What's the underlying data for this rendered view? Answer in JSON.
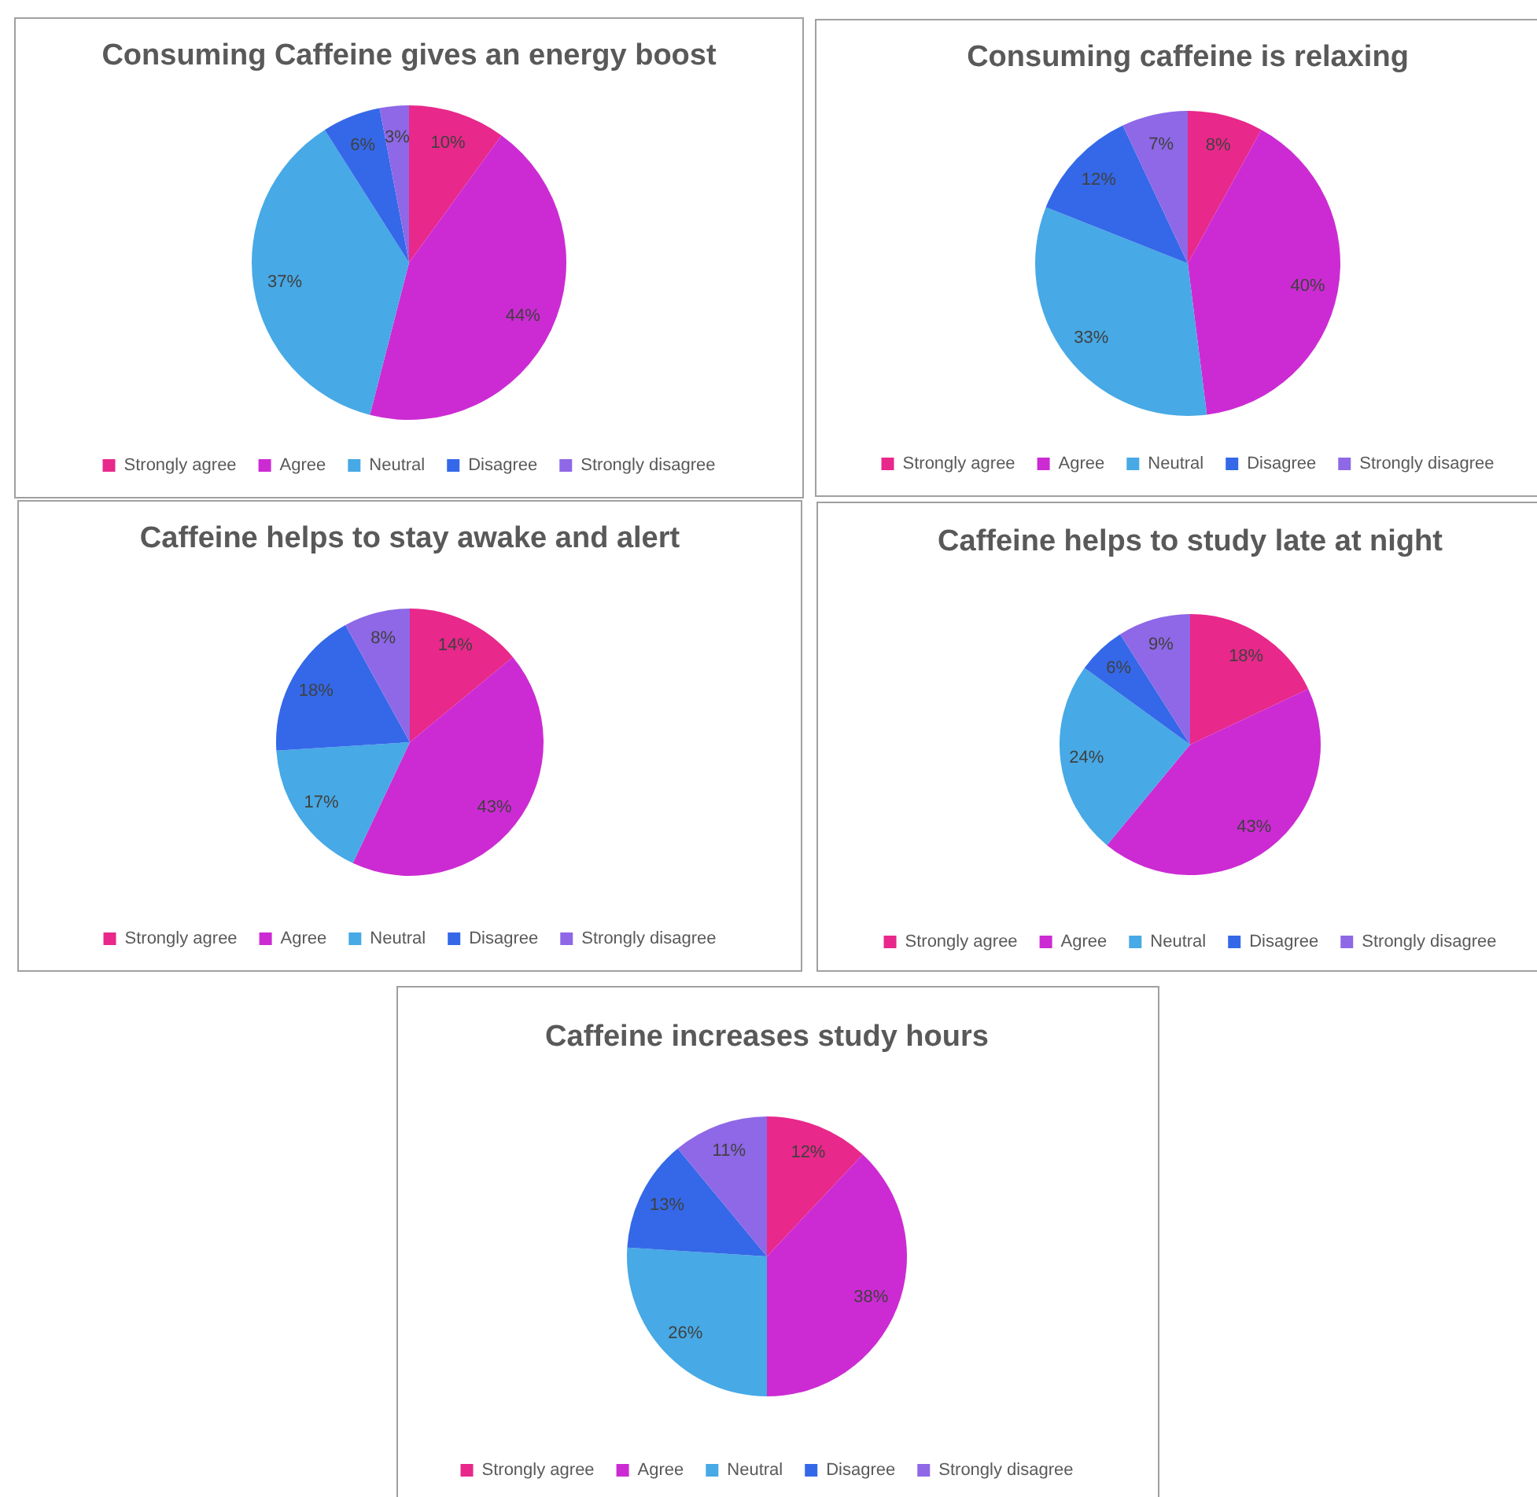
{
  "chart_data": [
    {
      "type": "pie",
      "title": "Consuming Caffeine gives an energy boost",
      "categories": [
        "Strongly agree",
        "Agree",
        "Neutral",
        "Disagree",
        "Strongly disagree"
      ],
      "values": [
        10,
        44,
        37,
        6,
        3
      ],
      "colors": [
        "#e8288a",
        "#cc2bd3",
        "#47a9e5",
        "#3468e8",
        "#8e68e6"
      ],
      "value_labels": [
        "10%",
        "44%",
        "37%",
        "6%",
        "3%"
      ],
      "legend": "bottom"
    },
    {
      "type": "pie",
      "title": "Consuming caffeine is relaxing",
      "categories": [
        "Strongly agree",
        "Agree",
        "Neutral",
        "Disagree",
        "Strongly disagree"
      ],
      "values": [
        8,
        40,
        33,
        12,
        7
      ],
      "colors": [
        "#e8288a",
        "#cc2bd3",
        "#47a9e5",
        "#3468e8",
        "#8e68e6"
      ],
      "value_labels": [
        "8%",
        "40%",
        "33%",
        "12%",
        "7%"
      ],
      "legend": "bottom"
    },
    {
      "type": "pie",
      "title": "Caffeine helps to stay awake and alert",
      "categories": [
        "Strongly agree",
        "Agree",
        "Neutral",
        "Disagree",
        "Strongly disagree"
      ],
      "values": [
        14,
        43,
        17,
        18,
        8
      ],
      "colors": [
        "#e8288a",
        "#cc2bd3",
        "#47a9e5",
        "#3468e8",
        "#8e68e6"
      ],
      "value_labels": [
        "14%",
        "43%",
        "17%",
        "18%",
        "8%"
      ],
      "legend": "bottom"
    },
    {
      "type": "pie",
      "title": "Caffeine helps to study late at night",
      "categories": [
        "Strongly agree",
        "Agree",
        "Neutral",
        "Disagree",
        "Strongly disagree"
      ],
      "values": [
        18,
        43,
        24,
        6,
        9
      ],
      "colors": [
        "#e8288a",
        "#cc2bd3",
        "#47a9e5",
        "#3468e8",
        "#8e68e6"
      ],
      "value_labels": [
        "18%",
        "43%",
        "24%",
        "6%",
        "9%"
      ],
      "legend": "bottom"
    },
    {
      "type": "pie",
      "title": "Caffeine increases study hours",
      "categories": [
        "Strongly agree",
        "Agree",
        "Neutral",
        "Disagree",
        "Strongly disagree"
      ],
      "values": [
        12,
        38,
        26,
        13,
        11
      ],
      "colors": [
        "#e8288a",
        "#cc2bd3",
        "#47a9e5",
        "#3468e8",
        "#8e68e6"
      ],
      "value_labels": [
        "12%",
        "38%",
        "26%",
        "13%",
        "11%"
      ],
      "legend": "bottom"
    }
  ]
}
